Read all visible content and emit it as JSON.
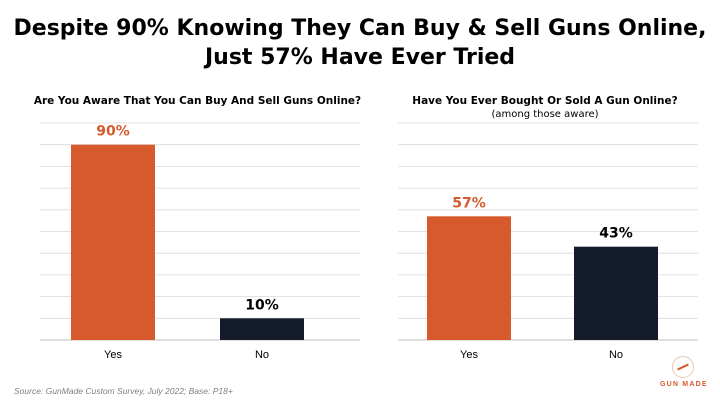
{
  "title_lines": [
    "Despite 90% Knowing They Can Buy & Sell Guns Online,",
    "Just 57% Have Ever Tried"
  ],
  "colors": {
    "accent": "#D65A2B",
    "dark": "#141C2C",
    "grid": "#D9D9D9",
    "source": "#7F7F7F"
  },
  "chart_data": [
    {
      "type": "bar",
      "title": "Are You Aware That You Can Buy And Sell Guns Online?",
      "subtitle": "",
      "categories": [
        "Yes",
        "No"
      ],
      "values": [
        90,
        10
      ],
      "data_labels": [
        "90%",
        "10%"
      ],
      "bar_colors": [
        "#D65A2B",
        "#141C2C"
      ],
      "label_colors": [
        "#D65A2B",
        "#000000"
      ],
      "ylim": [
        0,
        100
      ],
      "grid": true
    },
    {
      "type": "bar",
      "title": "Have You Ever Bought Or Sold A Gun Online?",
      "subtitle": "(among those aware)",
      "categories": [
        "Yes",
        "No"
      ],
      "values": [
        57,
        43
      ],
      "data_labels": [
        "57%",
        "43%"
      ],
      "bar_colors": [
        "#D65A2B",
        "#141C2C"
      ],
      "label_colors": [
        "#D65A2B",
        "#000000"
      ],
      "ylim": [
        0,
        100
      ],
      "grid": true
    }
  ],
  "source": "Source: GunMade Custom Survey, July 2022; Base: P18+",
  "logo_text": "GUN MADE"
}
